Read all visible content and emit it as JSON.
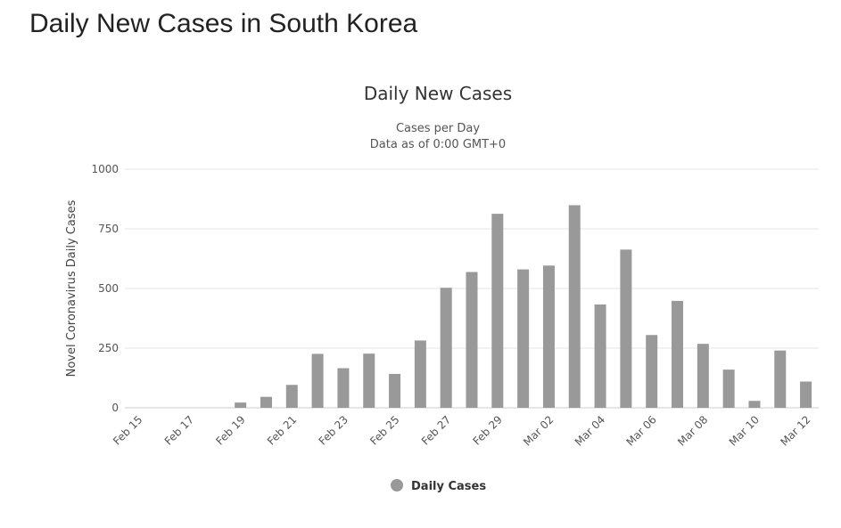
{
  "page": {
    "title": "Daily New Cases in South Korea"
  },
  "chart_data": {
    "type": "bar",
    "title": "Daily New Cases",
    "subtitle_lines": [
      "Cases per Day",
      "Data as of 0:00 GMT+0"
    ],
    "xlabel": "",
    "ylabel": "Novel Coronavirus Daily Cases",
    "ylim": [
      0,
      1000
    ],
    "y_ticks": [
      0,
      250,
      500,
      750,
      1000
    ],
    "x_tick_labels": [
      "Feb 15",
      "Feb 17",
      "Feb 19",
      "Feb 21",
      "Feb 23",
      "Feb 25",
      "Feb 27",
      "Feb 29",
      "Mar 02",
      "Mar 04",
      "Mar 06",
      "Mar 08",
      "Mar 10",
      "Mar 12"
    ],
    "categories": [
      "Feb 15",
      "Feb 16",
      "Feb 17",
      "Feb 18",
      "Feb 19",
      "Feb 20",
      "Feb 21",
      "Feb 22",
      "Feb 23",
      "Feb 24",
      "Feb 25",
      "Feb 26",
      "Feb 27",
      "Feb 28",
      "Feb 29",
      "Mar 01",
      "Mar 02",
      "Mar 03",
      "Mar 04",
      "Mar 05",
      "Mar 06",
      "Mar 07",
      "Mar 08",
      "Mar 09",
      "Mar 10",
      "Mar 11",
      "Mar 12"
    ],
    "series": [
      {
        "name": "Daily Cases",
        "color": "#999999",
        "values": [
          0,
          0,
          0,
          0,
          22,
          46,
          96,
          226,
          166,
          227,
          142,
          282,
          503,
          569,
          813,
          580,
          596,
          849,
          433,
          663,
          305,
          448,
          268,
          160,
          29,
          240,
          110
        ]
      }
    ],
    "grid": true,
    "legend": "bottom-center"
  }
}
